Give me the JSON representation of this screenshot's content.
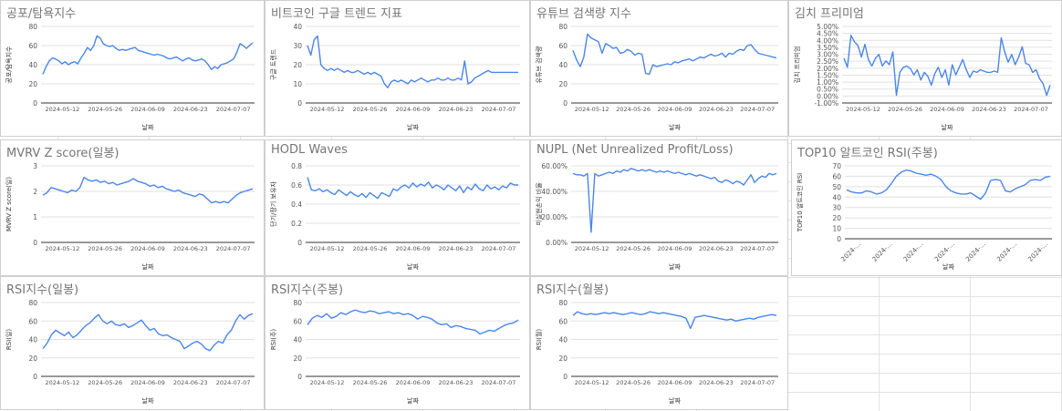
{
  "sheet": {
    "gridlines": true
  },
  "chart_data": [
    {
      "id": "fear-greed",
      "type": "line",
      "title": "공포/탐욕지수",
      "xlabel": "날짜",
      "ylabel": "공포/탐욕지수",
      "yticks": [
        "0",
        "20",
        "40",
        "60",
        "80"
      ],
      "ylim": [
        0,
        80
      ],
      "xticks": [
        "2024-05-12",
        "2024-05-26",
        "2024-06-09",
        "2024-06-23",
        "2024-07-07"
      ],
      "x_ticks_rotated": false,
      "color": "#4a86e8",
      "values": [
        30,
        38,
        44,
        47,
        46,
        44,
        41,
        43,
        40,
        42,
        43,
        41,
        47,
        52,
        58,
        55,
        60,
        70,
        68,
        62,
        60,
        59,
        60,
        57,
        55,
        56,
        55,
        56,
        57,
        58,
        55,
        54,
        53,
        52,
        51,
        50,
        51,
        50,
        49,
        47,
        46,
        47,
        48,
        46,
        44,
        46,
        47,
        45,
        44,
        45,
        46,
        44,
        40,
        35,
        38,
        36,
        40,
        41,
        42,
        44,
        46,
        53,
        62,
        60,
        57,
        60,
        63
      ]
    },
    {
      "id": "google-trends",
      "type": "line",
      "title": "비트코인 구글 트렌드 지표",
      "xlabel": "날짜",
      "ylabel": "구글 트렌드",
      "yticks": [
        "0",
        "10",
        "20",
        "30",
        "40"
      ],
      "ylim": [
        0,
        40
      ],
      "xticks": [
        "2024-05-12",
        "2024-05-26",
        "2024-06-09",
        "2024-06-23",
        "2024-07-07"
      ],
      "x_ticks_rotated": false,
      "color": "#4a86e8",
      "values": [
        30,
        25,
        33,
        35,
        20,
        18,
        17,
        18,
        17,
        18,
        17,
        16,
        17,
        16,
        16,
        17,
        16,
        15,
        16,
        15,
        16,
        15,
        14,
        10,
        8,
        11,
        12,
        11,
        12,
        11,
        10,
        12,
        11,
        12,
        13,
        12,
        11,
        12,
        12,
        13,
        12,
        12,
        13,
        12,
        12,
        13,
        12,
        22,
        10,
        11,
        13,
        14,
        15,
        16,
        17,
        16,
        16,
        16,
        16,
        16,
        16,
        16,
        16,
        16
      ]
    },
    {
      "id": "youtube-search",
      "type": "line",
      "title": "유튜브 검색량 지수",
      "xlabel": "날짜",
      "ylabel": "유튜브 검색량",
      "yticks": [
        "0",
        "20",
        "40",
        "60",
        "80"
      ],
      "ylim": [
        0,
        80
      ],
      "xticks": [
        "2024-05-12",
        "2024-05-26",
        "2024-06-09",
        "2024-06-23",
        "2024-07-07"
      ],
      "x_ticks_rotated": false,
      "color": "#4a86e8",
      "values": [
        55,
        45,
        38,
        48,
        72,
        68,
        66,
        64,
        52,
        62,
        60,
        57,
        58,
        52,
        53,
        56,
        54,
        50,
        52,
        51,
        31,
        30,
        40,
        38,
        39,
        40,
        41,
        40,
        43,
        42,
        44,
        45,
        46,
        44,
        46,
        48,
        47,
        49,
        51,
        49,
        50,
        52,
        48,
        52,
        51,
        54,
        56,
        55,
        60,
        61,
        56,
        52,
        51,
        50,
        49,
        48,
        47
      ]
    },
    {
      "id": "kimchi-premium",
      "type": "line",
      "title": "김치 프리미엄",
      "xlabel": "날짜",
      "ylabel": "김치 프리미엄",
      "yticks": [
        "-1.00%",
        "0.00%",
        "0.50%",
        "1.00%",
        "1.50%",
        "2.00%",
        "2.50%",
        "3.00%",
        "3.50%",
        "4.00%",
        "4.50%",
        "5.00%"
      ],
      "ylim": [
        -1,
        5
      ],
      "xticks": [
        "2024-05-12",
        "2024-05-26",
        "2024-06-09",
        "2024-06-23",
        "2024-07-07"
      ],
      "x_ticks_rotated": false,
      "color": "#4a86e8",
      "values": [
        2.5,
        1.8,
        4.3,
        3.8,
        3.5,
        2.6,
        3.6,
        2.4,
        1.9,
        2.5,
        2.8,
        1.9,
        2.3,
        2.0,
        3.0,
        -0.4,
        1.4,
        1.8,
        1.9,
        1.7,
        1.2,
        1.6,
        0.8,
        1.4,
        1.1,
        0.4,
        1.3,
        1.8,
        1.0,
        1.6,
        0.4,
        2.0,
        1.2,
        1.8,
        2.4,
        1.6,
        1.0,
        1.5,
        1.4,
        1.6,
        1.5,
        1.4,
        1.4,
        1.5,
        1.4,
        4.1,
        3.0,
        2.2,
        2.8,
        2.0,
        2.6,
        3.4,
        2.1,
        2.0,
        1.4,
        1.6,
        0.9,
        0.5,
        -0.4,
        0.4
      ]
    },
    {
      "id": "mvrv-z",
      "type": "line",
      "title": "MVRV Z score(일봉)",
      "xlabel": "날짜",
      "ylabel": "MVRV Z score(일)",
      "yticks": [
        "0",
        "1",
        "2",
        "3"
      ],
      "ylim": [
        0,
        3
      ],
      "xticks": [
        "2024-05-12",
        "2024-05-26",
        "2024-06-09",
        "2024-06-23",
        "2024-07-07"
      ],
      "x_ticks_rotated": false,
      "color": "#4a86e8",
      "values": [
        1.85,
        1.95,
        2.15,
        2.1,
        2.05,
        2.0,
        1.95,
        2.05,
        2.0,
        2.15,
        2.55,
        2.45,
        2.4,
        2.45,
        2.35,
        2.4,
        2.3,
        2.35,
        2.25,
        2.3,
        2.35,
        2.4,
        2.5,
        2.4,
        2.35,
        2.3,
        2.2,
        2.25,
        2.15,
        2.2,
        2.1,
        2.05,
        2.0,
        2.05,
        1.95,
        1.9,
        1.85,
        1.8,
        1.9,
        1.85,
        1.7,
        1.55,
        1.6,
        1.55,
        1.6,
        1.55,
        1.7,
        1.85,
        1.95,
        2.0,
        2.05,
        2.1
      ]
    },
    {
      "id": "hodl-waves",
      "type": "line",
      "title": "HODL Waves",
      "xlabel": "날짜",
      "ylabel": "단기/장기 보유자",
      "yticks": [
        "0",
        "0.2",
        "0.4",
        "0.6",
        "0.8"
      ],
      "ylim": [
        0,
        0.8
      ],
      "xticks": [
        "2024-05-12",
        "2024-05-26",
        "2024-06-09",
        "2024-06-23",
        "2024-07-07"
      ],
      "x_ticks_rotated": false,
      "color": "#4a86e8",
      "values": [
        0.68,
        0.55,
        0.54,
        0.56,
        0.53,
        0.55,
        0.52,
        0.5,
        0.55,
        0.52,
        0.49,
        0.53,
        0.5,
        0.48,
        0.51,
        0.47,
        0.52,
        0.49,
        0.46,
        0.52,
        0.5,
        0.48,
        0.56,
        0.54,
        0.58,
        0.6,
        0.57,
        0.62,
        0.58,
        0.61,
        0.59,
        0.63,
        0.57,
        0.6,
        0.58,
        0.55,
        0.6,
        0.57,
        0.54,
        0.59,
        0.52,
        0.58,
        0.55,
        0.61,
        0.56,
        0.54,
        0.6,
        0.56,
        0.58,
        0.55,
        0.59,
        0.57,
        0.62,
        0.6,
        0.6
      ]
    },
    {
      "id": "nupl",
      "type": "line",
      "title": "NUPL (Net Unrealized Profit/Loss)",
      "xlabel": "날짜",
      "ylabel": "미실현손익 비율",
      "yticks": [
        "0.00%",
        "20.00%",
        "40.00%",
        "60.00%"
      ],
      "ylim": [
        0,
        60
      ],
      "xticks": [
        "2024-05-12",
        "2024-05-26",
        "2024-06-09",
        "2024-06-23",
        "2024-07-07"
      ],
      "x_ticks_rotated": false,
      "color": "#4a86e8",
      "values": [
        54,
        53,
        53,
        52,
        54,
        8,
        54,
        52,
        53,
        54,
        55,
        54,
        56,
        55,
        57,
        56,
        58,
        57,
        56,
        57,
        56,
        57,
        56,
        55,
        56,
        55,
        56,
        55,
        54,
        55,
        54,
        53,
        54,
        53,
        52,
        53,
        52,
        51,
        50,
        51,
        48,
        47,
        49,
        48,
        46,
        48,
        47,
        45,
        49,
        53,
        47,
        50,
        52,
        51,
        54,
        53,
        54
      ]
    },
    {
      "id": "top10-alt-rsi",
      "type": "line",
      "title": "TOP10 알트코인 RSI(주봉)",
      "xlabel": "날짜",
      "ylabel": "TOP10 알트코인 RSI",
      "yticks": [
        "0",
        "10",
        "20",
        "30",
        "40",
        "50",
        "60",
        "70"
      ],
      "ylim": [
        0,
        70
      ],
      "xticks": [
        "2024-…",
        "2024-…",
        "2024-…",
        "2024-…",
        "2024-…",
        "2024-…",
        "2024-…"
      ],
      "x_ticks_rotated": true,
      "color": "#4a86e8",
      "values": [
        47,
        45,
        44,
        44,
        46,
        45,
        43,
        44,
        47,
        53,
        60,
        64,
        66,
        65,
        63,
        62,
        61,
        62,
        60,
        57,
        50,
        46,
        44,
        43,
        43,
        44,
        41,
        38,
        44,
        56,
        57,
        56,
        46,
        45,
        48,
        50,
        52,
        56,
        57,
        56,
        59,
        60
      ]
    },
    {
      "id": "rsi-daily",
      "type": "line",
      "title": "RSI지수(일봉)",
      "xlabel": "날짜",
      "ylabel": "RSI(일)",
      "yticks": [
        "0",
        "20",
        "40",
        "60",
        "80"
      ],
      "ylim": [
        0,
        80
      ],
      "xticks": [
        "2024-05-12",
        "2024-05-26",
        "2024-06-09",
        "2024-06-23",
        "2024-07-07"
      ],
      "x_ticks_rotated": false,
      "color": "#4a86e8",
      "values": [
        30,
        36,
        45,
        50,
        47,
        44,
        48,
        42,
        45,
        50,
        55,
        58,
        63,
        67,
        60,
        57,
        60,
        56,
        55,
        57,
        53,
        55,
        58,
        61,
        55,
        50,
        52,
        46,
        44,
        45,
        42,
        40,
        38,
        30,
        33,
        36,
        38,
        35,
        30,
        28,
        34,
        38,
        36,
        45,
        50,
        60,
        67,
        62,
        66,
        68
      ]
    },
    {
      "id": "rsi-weekly",
      "type": "line",
      "title": "RSI지수(주봉)",
      "xlabel": "날짜",
      "ylabel": "RSI(주)",
      "yticks": [
        "0",
        "20",
        "40",
        "60",
        "80"
      ],
      "ylim": [
        0,
        80
      ],
      "xticks": [
        "2024-05-12",
        "2024-05-26",
        "2024-06-09",
        "2024-06-23",
        "2024-07-07"
      ],
      "x_ticks_rotated": false,
      "color": "#4a86e8",
      "values": [
        56,
        63,
        66,
        64,
        68,
        63,
        65,
        69,
        67,
        70,
        72,
        70,
        69,
        71,
        70,
        68,
        69,
        70,
        68,
        69,
        67,
        68,
        66,
        62,
        65,
        64,
        62,
        58,
        56,
        57,
        53,
        55,
        54,
        52,
        51,
        50,
        46,
        48,
        50,
        49,
        52,
        55,
        57,
        58,
        61
      ]
    },
    {
      "id": "rsi-monthly",
      "type": "line",
      "title": "RSI지수(월봉)",
      "xlabel": "날짜",
      "ylabel": "RSI(월)",
      "yticks": [
        "0",
        "20",
        "40",
        "60",
        "80"
      ],
      "ylim": [
        0,
        80
      ],
      "xticks": [
        "2024-05-12",
        "2024-05-26",
        "2024-06-09",
        "2024-06-23",
        "2024-07-07"
      ],
      "x_ticks_rotated": false,
      "color": "#4a86e8",
      "values": [
        66,
        70,
        68,
        67,
        68,
        67,
        68,
        69,
        68,
        69,
        68,
        67,
        68,
        69,
        68,
        67,
        68,
        70,
        69,
        68,
        69,
        68,
        67,
        66,
        65,
        63,
        52,
        64,
        65,
        66,
        65,
        64,
        63,
        62,
        61,
        62,
        60,
        61,
        62,
        63,
        62,
        64,
        65,
        66,
        67,
        66
      ]
    }
  ]
}
